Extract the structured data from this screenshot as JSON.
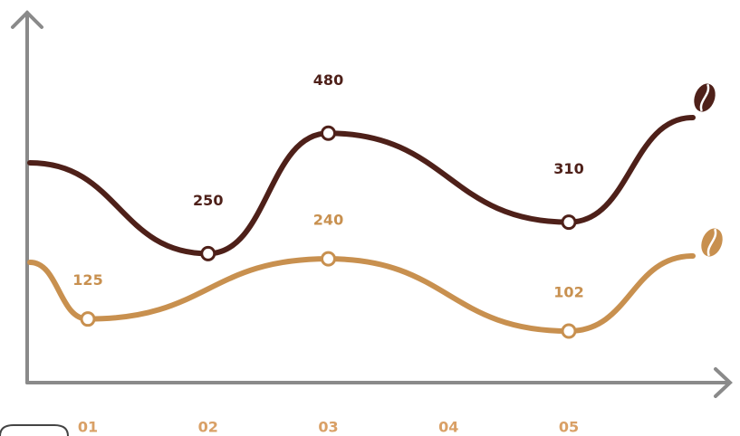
{
  "chart_data": {
    "type": "line",
    "categories": [
      "01",
      "02",
      "03",
      "04",
      "05"
    ],
    "ylim": [
      0,
      700
    ],
    "series": [
      {
        "color": "#4e2019",
        "values": [
          null,
          250,
          480,
          null,
          310
        ]
      },
      {
        "color": "#c8904f",
        "values": [
          125,
          null,
          240,
          null,
          102
        ]
      }
    ],
    "category_color": "#d9a066"
  }
}
